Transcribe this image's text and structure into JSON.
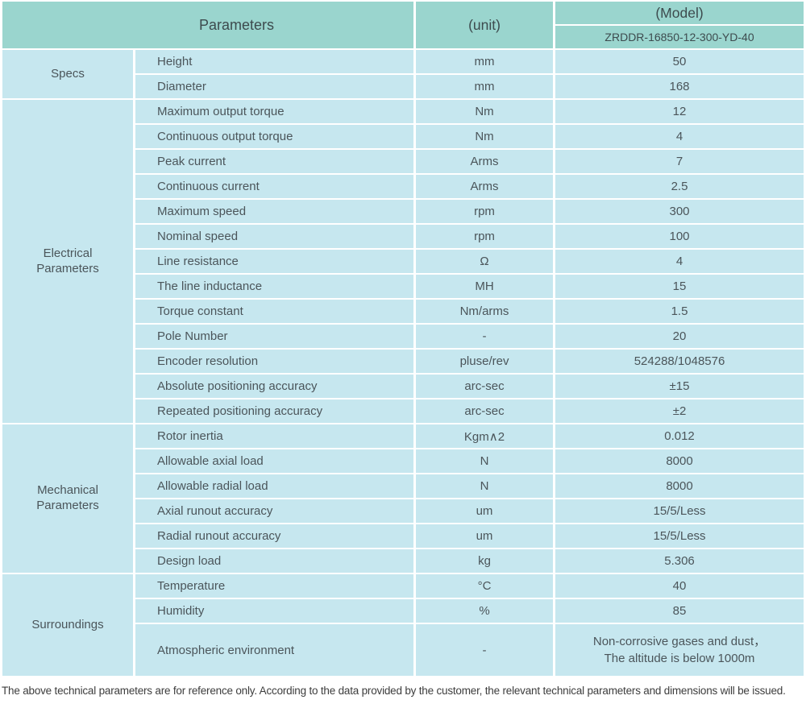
{
  "colors": {
    "header_bg": "#9ad5ce",
    "cell_bg": "#c6e7ef",
    "header_text": "#3d4b4e",
    "body_text": "#4b555a",
    "grid_lines": "#ffffff"
  },
  "header": {
    "parameters_label": "Parameters",
    "unit_label": "(unit)",
    "model_label": "(Model)",
    "model_value": "ZRDDR-16850-12-300-YD-40"
  },
  "sections": [
    {
      "label": "Specs",
      "rows": [
        {
          "name": "Height",
          "unit": "mm",
          "value": "50"
        },
        {
          "name": "Diameter",
          "unit": "mm",
          "value": "168"
        }
      ]
    },
    {
      "label": "Electrical\nParameters",
      "rows": [
        {
          "name": "Maximum output torque",
          "unit": "Nm",
          "value": "12"
        },
        {
          "name": "Continuous output torque",
          "unit": "Nm",
          "value": "4"
        },
        {
          "name": "Peak current",
          "unit": "Arms",
          "value": "7"
        },
        {
          "name": "Continuous current",
          "unit": "Arms",
          "value": "2.5"
        },
        {
          "name": "Maximum speed",
          "unit": "rpm",
          "value": "300"
        },
        {
          "name": "Nominal speed",
          "unit": "rpm",
          "value": "100"
        },
        {
          "name": "Line resistance",
          "unit": "Ω",
          "value": "4"
        },
        {
          "name": "The line inductance",
          "unit": "MH",
          "value": "15"
        },
        {
          "name": "Torque constant",
          "unit": "Nm/arms",
          "value": "1.5"
        },
        {
          "name": "Pole Number",
          "unit": "-",
          "value": "20"
        },
        {
          "name": "Encoder resolution",
          "unit": "pluse/rev",
          "value": "524288/1048576"
        },
        {
          "name": "Absolute positioning accuracy",
          "unit": "arc-sec",
          "value": "±15"
        },
        {
          "name": "Repeated positioning accuracy",
          "unit": "arc-sec",
          "value": "±2"
        }
      ]
    },
    {
      "label": "Mechanical\nParameters",
      "rows": [
        {
          "name": "Rotor inertia",
          "unit": "Kgm∧2",
          "value": "0.012"
        },
        {
          "name": "Allowable axial load",
          "unit": "N",
          "value": "8000"
        },
        {
          "name": "Allowable radial load",
          "unit": "N",
          "value": "8000"
        },
        {
          "name": "Axial runout accuracy",
          "unit": "um",
          "value": "15/5/Less"
        },
        {
          "name": "Radial runout accuracy",
          "unit": "um",
          "value": "15/5/Less"
        },
        {
          "name": "Design load",
          "unit": "kg",
          "value": "5.306"
        }
      ]
    },
    {
      "label": "Surroundings",
      "rows": [
        {
          "name": "Temperature",
          "unit": "°C",
          "value": "40"
        },
        {
          "name": "Humidity",
          "unit": "%",
          "value": "85"
        },
        {
          "name": "Atmospheric environment",
          "unit": "-",
          "value": "Non-corrosive gases and dust，\nThe altitude is below 1000m"
        }
      ]
    }
  ],
  "footer": {
    "note": "The above technical parameters are for reference only. According to the data provided by the customer, the relevant technical parameters and dimensions will be issued."
  }
}
